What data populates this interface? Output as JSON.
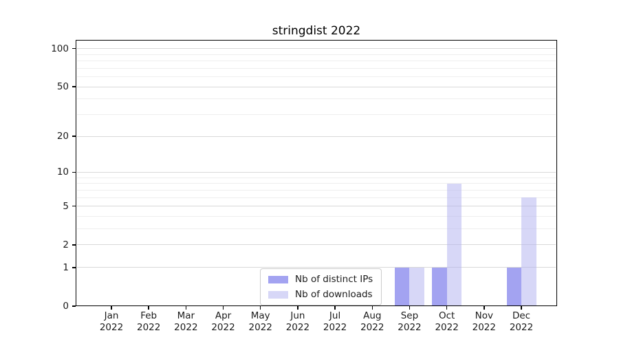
{
  "chart_data": {
    "type": "bar",
    "title": "stringdist 2022",
    "categories": [
      "Jan",
      "Feb",
      "Mar",
      "Apr",
      "May",
      "Jun",
      "Jul",
      "Aug",
      "Sep",
      "Oct",
      "Nov",
      "Dec"
    ],
    "category_year": "2022",
    "series": [
      {
        "name": "Nb of distinct IPs",
        "color": "#a8a8f2",
        "fill": "rgba(140,140,238,0.80)",
        "values": [
          0,
          0,
          0,
          0,
          0,
          0,
          0,
          0,
          1,
          1,
          0,
          1
        ]
      },
      {
        "name": "Nb of downloads",
        "color": "#dadaf8",
        "fill": "rgba(176,176,240,0.50)",
        "values": [
          0,
          0,
          0,
          0,
          0,
          0,
          0,
          0,
          1,
          8,
          0,
          6
        ]
      }
    ],
    "yscale": "log1p",
    "ylim": [
      0,
      116
    ],
    "y_major_ticks": [
      0,
      1,
      2,
      5,
      10,
      20,
      50,
      100
    ],
    "y_minor_gridlines": [
      3,
      4,
      6,
      7,
      8,
      9,
      30,
      40,
      60,
      70,
      80,
      90
    ],
    "grid": "horizontal",
    "legend": {
      "position": "lower-center",
      "entries": [
        "Nb of distinct IPs",
        "Nb of downloads"
      ]
    }
  },
  "colors": {
    "axis": "#000000",
    "grid_major": "#d8d8d8",
    "grid_minor": "#eeeeee",
    "text": "#1a1a1a",
    "legend_border": "#cccccc",
    "background": "#ffffff"
  }
}
